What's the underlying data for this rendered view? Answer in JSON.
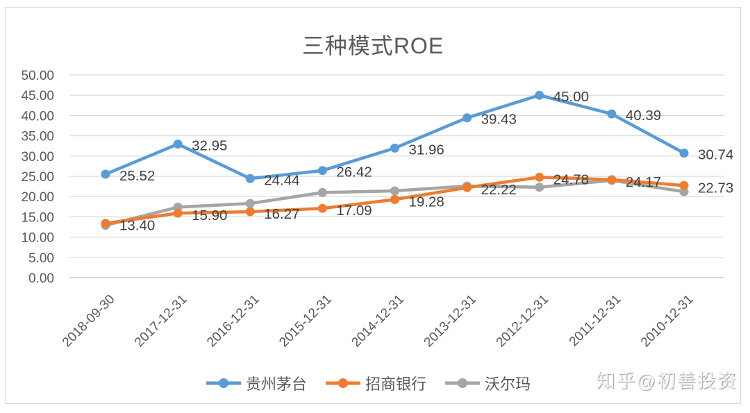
{
  "watermark": {
    "text": "知乎@初善投资"
  },
  "chart_data": {
    "type": "line",
    "title": "三种模式ROE",
    "categories": [
      "2018-09-30",
      "2017-12-31",
      "2016-12-31",
      "2015-12-31",
      "2014-12-31",
      "2013-12-31",
      "2012-12-31",
      "2011-12-31",
      "2010-12-31"
    ],
    "series": [
      {
        "name": "贵州茅台",
        "color": "#5B9BD5",
        "values": [
          25.52,
          32.95,
          24.44,
          26.42,
          31.96,
          39.43,
          45.0,
          40.39,
          30.74
        ],
        "data_labels": [
          "25.52",
          "32.95",
          "24.44",
          "26.42",
          "31.96",
          "39.43",
          "45.00",
          "40.39",
          "30.74"
        ],
        "labels_shown": true
      },
      {
        "name": "招商银行",
        "color": "#ED7D31",
        "values": [
          13.4,
          15.9,
          16.27,
          17.09,
          19.28,
          22.22,
          24.78,
          24.17,
          22.73
        ],
        "data_labels": [
          "13.40",
          "15.90",
          "16.27",
          "17.09",
          "19.28",
          "22.22",
          "24.78",
          "24.17",
          "22.73"
        ],
        "labels_shown": true
      },
      {
        "name": "沃尔玛",
        "color": "#A5A5A5",
        "values": [
          12.9,
          17.4,
          18.3,
          21.0,
          21.4,
          22.6,
          22.3,
          24.0,
          21.2
        ],
        "labels_shown": false
      }
    ],
    "ylim": [
      0,
      50
    ],
    "ytick_step": 5,
    "y_tick_labels": [
      "0.00",
      "5.00",
      "10.00",
      "15.00",
      "20.00",
      "25.00",
      "30.00",
      "35.00",
      "40.00",
      "45.00",
      "50.00"
    ],
    "grid": true,
    "legend_position": "bottom",
    "colors": {
      "gridline": "#d9d9d9",
      "axis_line": "#bfbfbf",
      "axis_text": "#595959",
      "data_label_text": "#3f3f3f",
      "title_text": "#595959"
    }
  }
}
